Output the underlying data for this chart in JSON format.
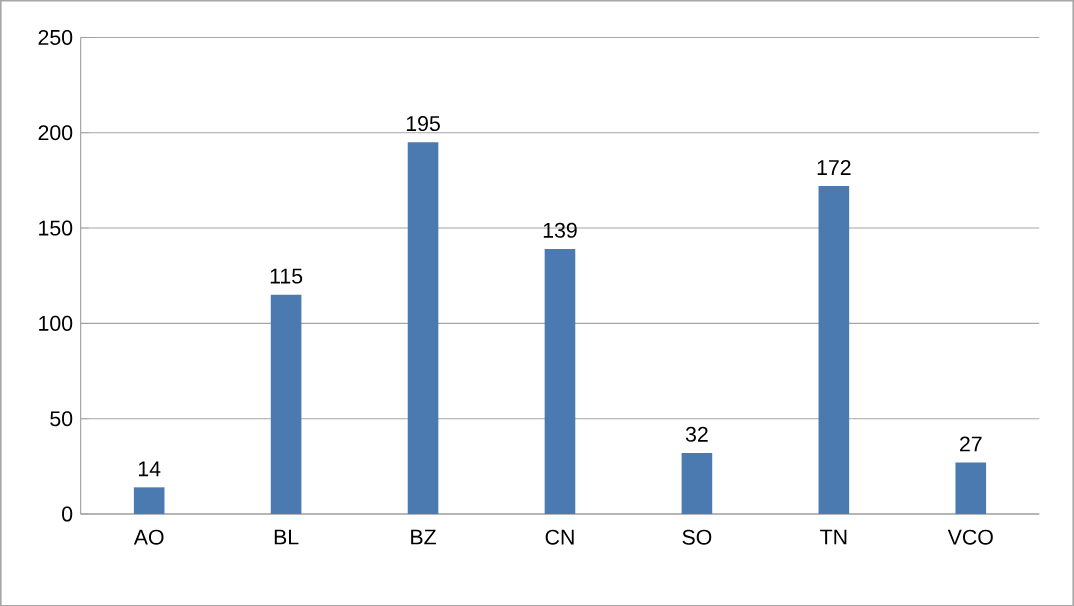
{
  "chart_data": {
    "type": "bar",
    "categories": [
      "AO",
      "BL",
      "BZ",
      "CN",
      "SO",
      "TN",
      "VCO"
    ],
    "values": [
      14,
      115,
      195,
      139,
      32,
      172,
      27
    ],
    "color": "#4a7ab0",
    "ylim": [
      0,
      250
    ],
    "yticks": [
      0,
      50,
      100,
      150,
      200,
      250
    ],
    "grid": "y",
    "data_labels": true
  }
}
